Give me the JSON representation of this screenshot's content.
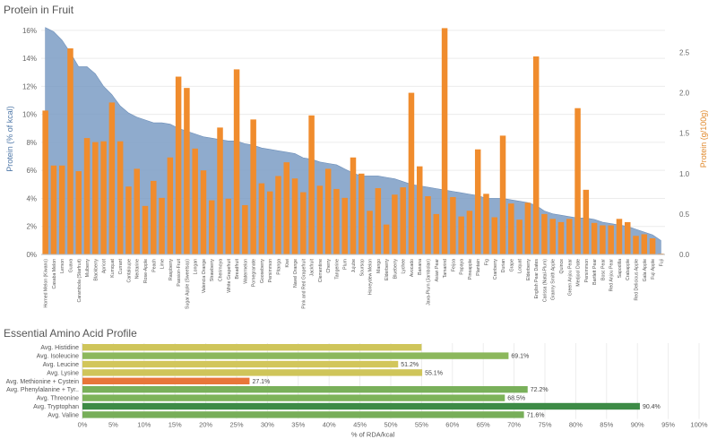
{
  "chart_data": [
    {
      "type": "bar",
      "combo": "area (protein % of kcal) + bars (protein g/100g)",
      "title": "Protein in Fruit",
      "ylabel": "Protein (% of kcal)",
      "y2label": "Protein (g/100g)",
      "ylim": [
        0,
        16.5
      ],
      "y2lim": [
        0,
        2.86
      ],
      "yticks": [
        "0%",
        "2%",
        "4%",
        "6%",
        "8%",
        "10%",
        "12%",
        "14%",
        "16%"
      ],
      "y2ticks": [
        "0.0",
        "0.5",
        "1.0",
        "1.5",
        "2.0",
        "2.5"
      ],
      "area_color": "#7b9cc4",
      "bar_color": "#f08c2d",
      "categories": [
        "Horned Melon (Kiwano)",
        "Casaba Melon",
        "Lemon",
        "Guava",
        "Carambola (Starfruit)",
        "Mulberry",
        "Blackberry",
        "Apricot",
        "Kumquat",
        "Currant",
        "Cantaloupe",
        "Nectarine",
        "Rose-Apple",
        "Peach",
        "Lime",
        "Raspberry",
        "Passion-Fruit",
        "Sugar Apple (Sweetsop)",
        "Longan",
        "Valencia Orange",
        "Strawberry",
        "Cherimoya",
        "White Grapefruit",
        "Breadfruit",
        "Watermelon",
        "Pomegranate",
        "Gooseberry",
        "Persimmon",
        "Pitanga",
        "Kiwi",
        "Navel Orange",
        "Pink and Red Grapefruit",
        "Jackfruit",
        "Clementine",
        "Cherry",
        "Tangerine",
        "Plum",
        "Jujube",
        "Soursop",
        "Honeydew Melon",
        "Mango",
        "Elderberry",
        "Blueberry",
        "Lychee",
        "Avocado",
        "Banana",
        "Java-Plum (Jambolan)",
        "Asian Pear",
        "Tamarind",
        "Feijoa",
        "Papaya",
        "Pineapple",
        "Plantain",
        "Fig",
        "Cranberry",
        "Durian",
        "Grape",
        "Loquat",
        "Elderberry",
        "English Pear Dates",
        "Carissa (Natal-Plum)",
        "Granny Smith Apple",
        "Quince",
        "Green Anjou Pear",
        "Medjool Date",
        "Persimmon",
        "Bartlett Pear",
        "Bosc Pear",
        "Red Anjou Pear",
        "Sapodilla",
        "Crabapple",
        "Red Delicious Apple",
        "Gala Apple",
        "Fuji Apple",
        "Fuji"
      ],
      "series": [
        {
          "name": "Protein (% of kcal)",
          "values": [
            16.2,
            15.9,
            15.3,
            14.4,
            13.4,
            13.4,
            12.9,
            12.0,
            11.4,
            10.6,
            10.1,
            9.8,
            9.6,
            9.4,
            9.4,
            9.3,
            9.0,
            8.8,
            8.6,
            8.4,
            8.3,
            8.2,
            8.1,
            8.1,
            7.9,
            7.8,
            7.6,
            7.5,
            7.4,
            7.3,
            7.2,
            6.9,
            6.8,
            6.6,
            6.5,
            6.4,
            6.1,
            5.8,
            5.6,
            5.6,
            5.6,
            5.5,
            5.4,
            5.2,
            5.0,
            4.9,
            4.8,
            4.7,
            4.6,
            4.5,
            4.4,
            4.3,
            4.2,
            4.0,
            4.0,
            4.0,
            3.9,
            3.8,
            3.7,
            3.5,
            3.1,
            2.9,
            2.8,
            2.7,
            2.6,
            2.6,
            2.5,
            2.3,
            2.2,
            2.1,
            2.0,
            1.8,
            1.6,
            1.4,
            1.0
          ]
        },
        {
          "name": "Protein (g/100g)",
          "values": [
            1.78,
            1.1,
            1.1,
            2.55,
            1.03,
            1.44,
            1.39,
            1.4,
            1.88,
            1.4,
            0.84,
            1.06,
            0.6,
            0.91,
            0.7,
            1.2,
            2.2,
            2.06,
            1.31,
            1.04,
            0.67,
            1.57,
            0.69,
            2.29,
            0.61,
            1.67,
            0.88,
            0.78,
            0.97,
            1.14,
            0.94,
            0.77,
            1.72,
            0.85,
            1.06,
            0.81,
            0.7,
            1.2,
            1.0,
            0.54,
            0.82,
            0.37,
            0.74,
            0.83,
            2.0,
            1.09,
            0.72,
            0.5,
            2.8,
            0.71,
            0.47,
            0.54,
            1.3,
            0.75,
            0.46,
            1.47,
            0.63,
            0.43,
            0.64,
            2.45,
            0.5,
            0.44,
            0.4,
            0.44,
            1.81,
            0.8,
            0.39,
            0.36,
            0.36,
            0.44,
            0.4,
            0.23,
            0.25,
            0.2,
            0.01
          ]
        }
      ]
    },
    {
      "type": "bar",
      "orientation": "horizontal",
      "title": "Essential Amino Acid Profile",
      "xlabel": "% of RDA/kcal",
      "xlim": [
        0,
        100
      ],
      "xticks": [
        "0%",
        "5%",
        "10%",
        "15%",
        "20%",
        "25%",
        "30%",
        "35%",
        "40%",
        "45%",
        "50%",
        "55%",
        "60%",
        "65%",
        "70%",
        "75%",
        "80%",
        "85%",
        "90%",
        "95%",
        "100%"
      ],
      "categories": [
        "Avg. Histidine",
        "Avg. Isoleucine",
        "Avg. Leucine",
        "Avg. Lysine",
        "Avg. Methionine + Cystein",
        "Avg. Phenylalanine + Tyr..",
        "Avg. Threonine",
        "Avg. Tryptophan",
        "Avg. Valine"
      ],
      "values": [
        55.0,
        69.1,
        51.2,
        55.1,
        27.1,
        72.2,
        68.5,
        90.4,
        71.6
      ],
      "data_labels": [
        "",
        "69.1%",
        "51.2%",
        "55.1%",
        "27.1%",
        "72.2%",
        "68.5%",
        "90.4%",
        "71.6%"
      ],
      "colors": [
        "#cfc55a",
        "#8cb85c",
        "#d2c65b",
        "#cfc55a",
        "#e8763a",
        "#79b05a",
        "#7db35a",
        "#3d8b46",
        "#77ae59"
      ]
    }
  ]
}
